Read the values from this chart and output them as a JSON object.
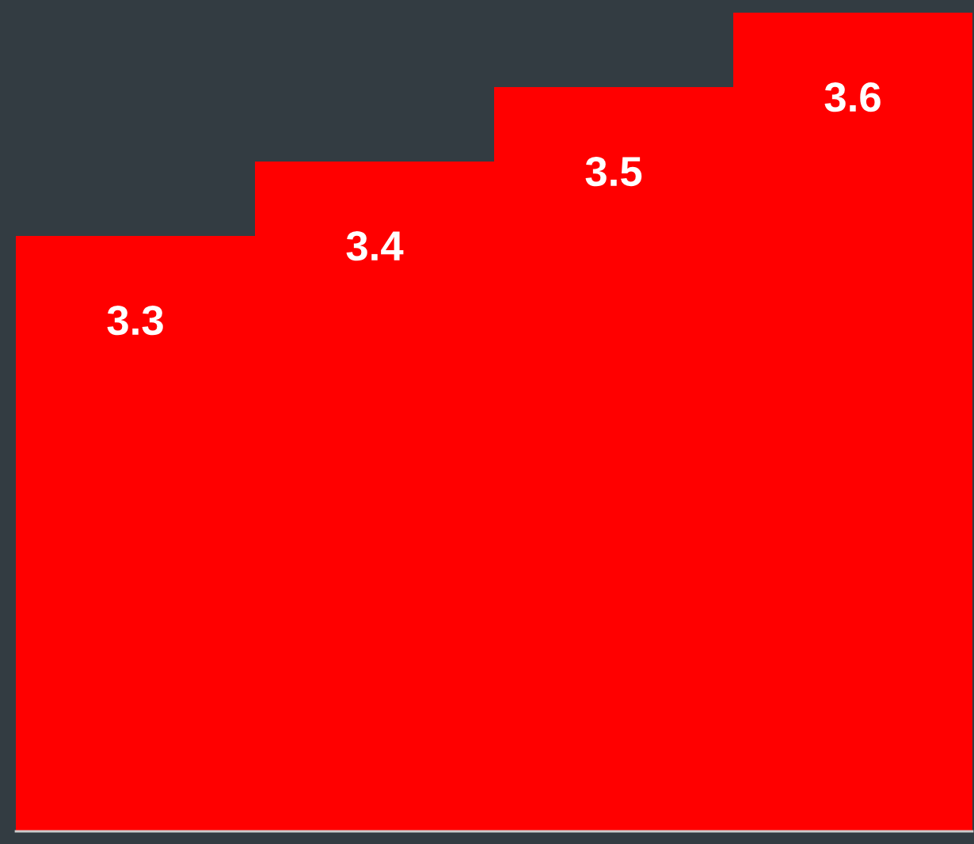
{
  "chart_data": {
    "type": "bar",
    "categories": [
      null,
      null,
      null,
      null
    ],
    "values": [
      3.3,
      3.4,
      3.5,
      3.6
    ],
    "color": "#ff0000",
    "ylim": [
      2.5,
      3.6
    ],
    "data_labels": true,
    "grid": false,
    "legend": false
  }
}
